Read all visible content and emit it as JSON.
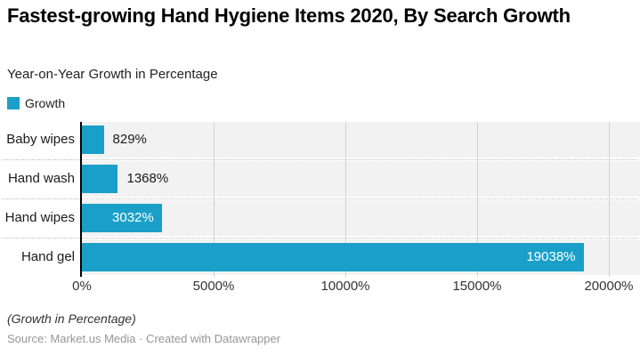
{
  "header": {
    "title": "Fastest-growing Hand Hygiene Items 2020, By Search Growth",
    "subtitle": "Year-on-Year Growth in Percentage"
  },
  "legend": {
    "label": "Growth",
    "color": "#1aa0c8"
  },
  "chart_data": {
    "type": "bar",
    "orientation": "horizontal",
    "title": "Fastest-growing Hand Hygiene Items 2020, By Search Growth",
    "subtitle": "Year-on-Year Growth in Percentage",
    "categories": [
      "Baby wipes",
      "Hand wash",
      "Hand wipes",
      "Hand gel"
    ],
    "values": [
      829,
      1368,
      3032,
      19038
    ],
    "value_labels": [
      "829%",
      "1368%",
      "3032%",
      "19038%"
    ],
    "series_name": "Growth",
    "x_ticks": [
      "0%",
      "5000%",
      "10000%",
      "15000%",
      "20000%"
    ],
    "tick_values": [
      0,
      5000,
      10000,
      15000,
      20000
    ],
    "xlim": [
      0,
      20000
    ],
    "bar_color": "#1aa0c8",
    "row_background_color": "#f2f2f2",
    "grid": true,
    "legend_position": "top-left"
  },
  "footer": {
    "note": "(Growth in Percentage)",
    "source": "Source: Market.us Media · Created with Datawrapper"
  }
}
